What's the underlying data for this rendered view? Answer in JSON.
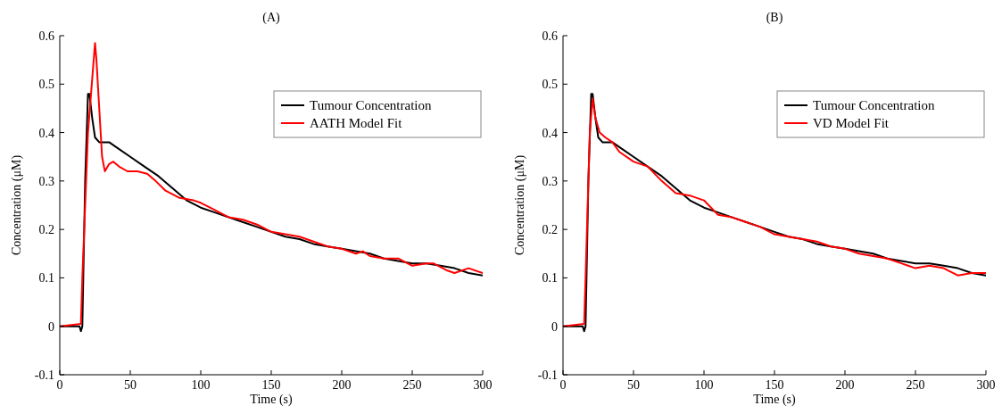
{
  "chart_data": [
    {
      "type": "line",
      "title": "(A)",
      "xlabel": "Time (s)",
      "ylabel": "Concentration (μM)",
      "xlim": [
        0,
        300
      ],
      "xticks": [
        0,
        50,
        100,
        150,
        200,
        250,
        300
      ],
      "ylim": [
        -0.1,
        0.6
      ],
      "yticks": [
        -0.1,
        0,
        0.1,
        0.2,
        0.3,
        0.4,
        0.5,
        0.6
      ],
      "legend": "top right",
      "grid": false,
      "series": [
        {
          "name": "Tumour Concentration",
          "color": "#000000",
          "x": [
            0,
            10,
            14,
            15,
            16,
            18,
            20,
            21,
            23,
            25,
            28,
            35,
            40,
            50,
            60,
            70,
            80,
            90,
            100,
            110,
            120,
            130,
            140,
            150,
            160,
            170,
            180,
            190,
            200,
            210,
            220,
            230,
            240,
            250,
            260,
            270,
            280,
            290,
            300
          ],
          "values": [
            0,
            0,
            0,
            -0.01,
            0,
            0.3,
            0.48,
            0.48,
            0.43,
            0.39,
            0.38,
            0.38,
            0.37,
            0.35,
            0.33,
            0.31,
            0.285,
            0.26,
            0.245,
            0.235,
            0.225,
            0.215,
            0.205,
            0.195,
            0.185,
            0.18,
            0.17,
            0.165,
            0.16,
            0.155,
            0.15,
            0.14,
            0.135,
            0.13,
            0.13,
            0.125,
            0.12,
            0.11,
            0.105
          ]
        },
        {
          "name": "AATH Model Fit",
          "color": "#ff0000",
          "x": [
            0,
            15,
            16,
            20,
            25,
            26,
            30,
            32,
            35,
            38,
            42,
            48,
            55,
            62,
            68,
            75,
            85,
            95,
            100,
            110,
            120,
            130,
            140,
            150,
            160,
            170,
            180,
            190,
            200,
            210,
            215,
            220,
            230,
            240,
            250,
            260,
            265,
            275,
            280,
            290,
            300
          ],
          "values": [
            0,
            0.005,
            0.1,
            0.4,
            0.585,
            0.55,
            0.35,
            0.32,
            0.335,
            0.34,
            0.33,
            0.32,
            0.32,
            0.315,
            0.3,
            0.28,
            0.265,
            0.26,
            0.255,
            0.24,
            0.225,
            0.22,
            0.21,
            0.195,
            0.19,
            0.185,
            0.175,
            0.165,
            0.16,
            0.15,
            0.155,
            0.145,
            0.14,
            0.14,
            0.125,
            0.13,
            0.13,
            0.115,
            0.11,
            0.12,
            0.11
          ]
        }
      ]
    },
    {
      "type": "line",
      "title": "(B)",
      "xlabel": "Time (s)",
      "ylabel": "Concentration (μM)",
      "xlim": [
        0,
        300
      ],
      "xticks": [
        0,
        50,
        100,
        150,
        200,
        250,
        300
      ],
      "ylim": [
        -0.1,
        0.6
      ],
      "yticks": [
        -0.1,
        0,
        0.1,
        0.2,
        0.3,
        0.4,
        0.5,
        0.6
      ],
      "legend": "top right",
      "grid": false,
      "series": [
        {
          "name": "Tumour Concentration",
          "color": "#000000",
          "x": [
            0,
            10,
            14,
            15,
            16,
            18,
            20,
            21,
            23,
            25,
            28,
            35,
            40,
            50,
            60,
            70,
            80,
            90,
            100,
            110,
            120,
            130,
            140,
            150,
            160,
            170,
            180,
            190,
            200,
            210,
            220,
            230,
            240,
            250,
            260,
            270,
            280,
            290,
            300
          ],
          "values": [
            0,
            0,
            0,
            -0.01,
            0,
            0.3,
            0.48,
            0.48,
            0.43,
            0.39,
            0.38,
            0.38,
            0.37,
            0.35,
            0.33,
            0.31,
            0.285,
            0.26,
            0.245,
            0.235,
            0.225,
            0.215,
            0.205,
            0.195,
            0.185,
            0.18,
            0.17,
            0.165,
            0.16,
            0.155,
            0.15,
            0.14,
            0.135,
            0.13,
            0.13,
            0.125,
            0.12,
            0.11,
            0.105
          ]
        },
        {
          "name": "VD Model Fit",
          "color": "#ff0000",
          "x": [
            0,
            15,
            16,
            19,
            21,
            23,
            26,
            30,
            35,
            40,
            50,
            60,
            70,
            80,
            90,
            100,
            110,
            120,
            130,
            140,
            150,
            160,
            170,
            180,
            190,
            200,
            210,
            220,
            230,
            240,
            250,
            260,
            270,
            280,
            290,
            300
          ],
          "values": [
            0,
            0.005,
            0.1,
            0.4,
            0.47,
            0.43,
            0.4,
            0.39,
            0.38,
            0.36,
            0.34,
            0.33,
            0.3,
            0.275,
            0.27,
            0.26,
            0.23,
            0.225,
            0.215,
            0.205,
            0.19,
            0.185,
            0.18,
            0.175,
            0.165,
            0.16,
            0.15,
            0.145,
            0.14,
            0.13,
            0.12,
            0.125,
            0.12,
            0.105,
            0.11,
            0.11
          ]
        }
      ]
    }
  ]
}
